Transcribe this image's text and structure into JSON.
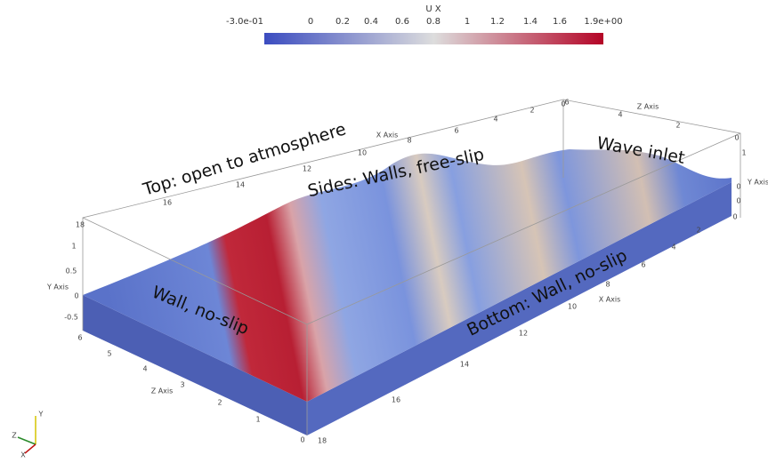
{
  "colorbar": {
    "title": "U X",
    "ticks": [
      "-3.0e-01",
      "0",
      "0.2",
      "0.4",
      "0.6",
      "0.8",
      "1",
      "1.2",
      "1.4",
      "1.6",
      "1.9e+00"
    ]
  },
  "annotations": [
    "Top: open to atmosphere",
    "Sides: Walls, free-slip",
    "Wave inlet",
    "Wall, no-slip",
    "Bottom: Wall, no-slip"
  ],
  "axes": {
    "x_back": {
      "title": "X Axis",
      "ticks": [
        "18",
        "16",
        "14",
        "12",
        "10",
        "8",
        "6",
        "4",
        "2",
        "0"
      ]
    },
    "x_front": {
      "title": "X Axis",
      "ticks": [
        "18",
        "16",
        "14",
        "12",
        "10",
        "8",
        "6",
        "4",
        "2",
        "0"
      ]
    },
    "y_left": {
      "title": "Y Axis",
      "ticks": [
        "1",
        "0.5",
        "0",
        "-0.5"
      ]
    },
    "y_right": {
      "title": "Y Axis",
      "ticks": [
        "1",
        "0",
        "0"
      ]
    },
    "z_left": {
      "title": "Z Axis",
      "ticks": [
        "6",
        "5",
        "4",
        "3",
        "2",
        "1",
        "0"
      ]
    },
    "z_right": {
      "title": "Z Axis",
      "ticks": [
        "6",
        "4",
        "2",
        "0"
      ]
    }
  },
  "triad": [
    "Y",
    "Z",
    "X"
  ]
}
